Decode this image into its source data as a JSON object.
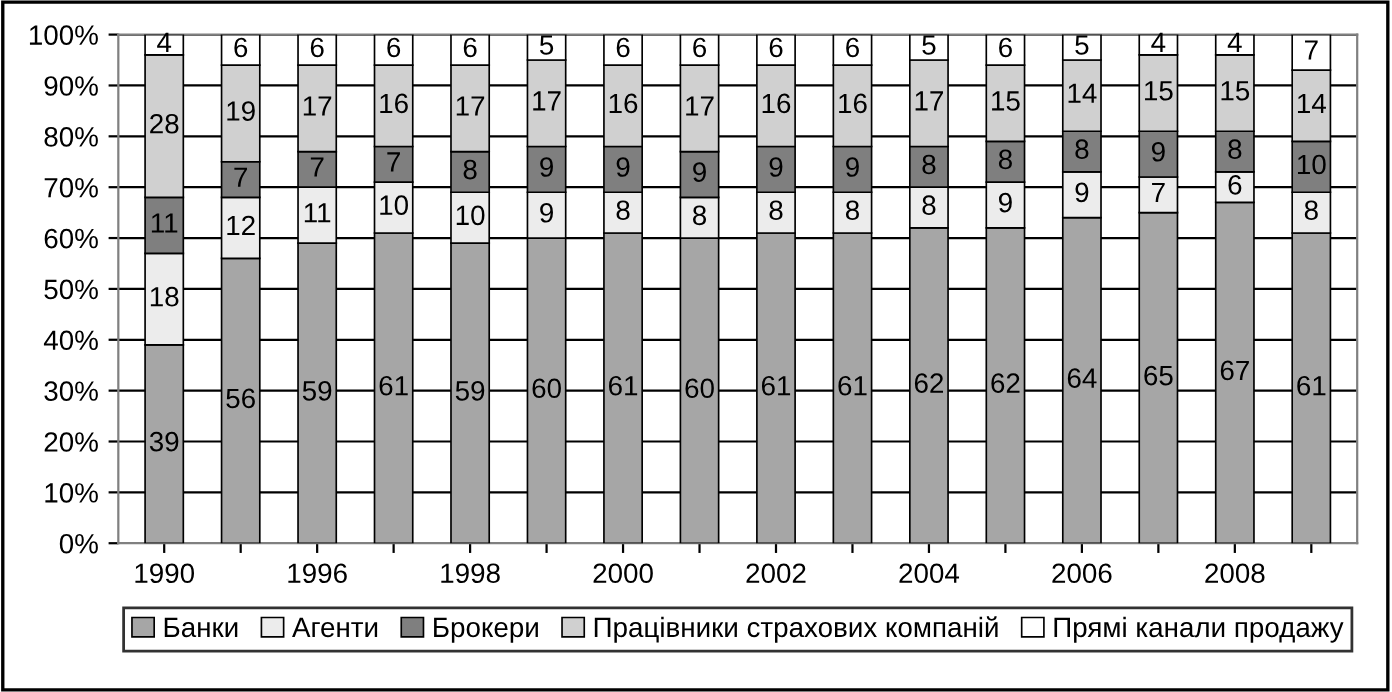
{
  "chart_data": {
    "type": "bar",
    "stacked": true,
    "data_labels": true,
    "grid": "y",
    "legend": "bottom",
    "categories": [
      "1990",
      null,
      "1996",
      null,
      "1998",
      null,
      "2000",
      null,
      "2002",
      null,
      "2004",
      null,
      "2006",
      null,
      "2008",
      null
    ],
    "ylim": [
      0,
      100
    ],
    "yticks": [
      {
        "value": 0,
        "label": "0%"
      },
      {
        "value": 10,
        "label": "10%"
      },
      {
        "value": 20,
        "label": "20%"
      },
      {
        "value": 30,
        "label": "30%"
      },
      {
        "value": 40,
        "label": "40%"
      },
      {
        "value": 50,
        "label": "50%"
      },
      {
        "value": 60,
        "label": "60%"
      },
      {
        "value": 70,
        "label": "70%"
      },
      {
        "value": 80,
        "label": "80%"
      },
      {
        "value": 90,
        "label": "90%"
      },
      {
        "value": 100,
        "label": "100%"
      }
    ],
    "series": [
      {
        "name": "Банки",
        "color": "#a6a6a6",
        "values": [
          39,
          56,
          59,
          61,
          59,
          60,
          61,
          60,
          61,
          61,
          62,
          62,
          64,
          65,
          67,
          61
        ]
      },
      {
        "name": "Агенти",
        "color": "#ececec",
        "values": [
          18,
          12,
          11,
          10,
          10,
          9,
          8,
          8,
          8,
          8,
          8,
          9,
          9,
          7,
          6,
          8
        ]
      },
      {
        "name": "Брокери",
        "color": "#7f7f7f",
        "values": [
          11,
          7,
          7,
          7,
          8,
          9,
          9,
          9,
          9,
          9,
          8,
          8,
          8,
          9,
          8,
          10
        ]
      },
      {
        "name": "Працівники страхових компаній",
        "color": "#d0d0d0",
        "values": [
          28,
          19,
          17,
          16,
          17,
          17,
          16,
          17,
          16,
          16,
          17,
          15,
          14,
          15,
          15,
          14
        ]
      },
      {
        "name": "Прямі канали продажу",
        "color": "#ffffff",
        "values": [
          4,
          6,
          6,
          6,
          6,
          5,
          6,
          6,
          6,
          6,
          5,
          6,
          5,
          4,
          4,
          7
        ]
      }
    ]
  }
}
